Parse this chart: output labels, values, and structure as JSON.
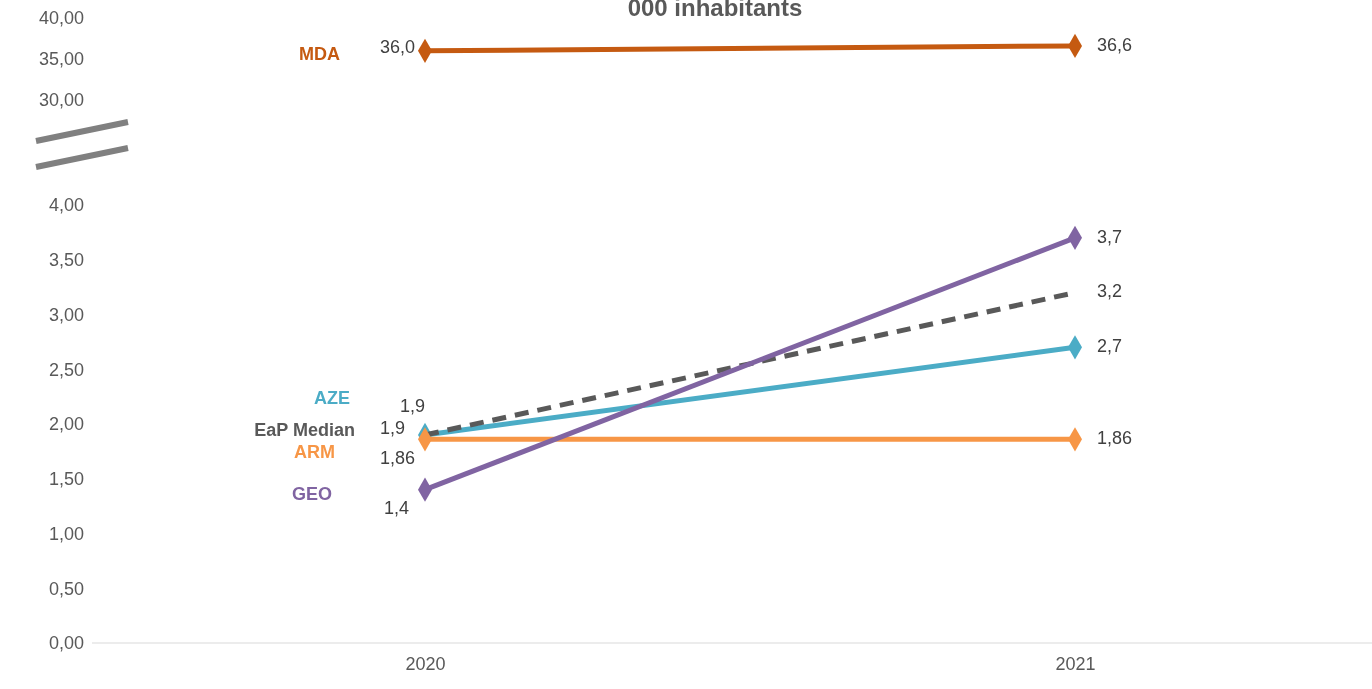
{
  "chart_data": [
    {
      "type": "line",
      "title": "000 inhabitants",
      "categories": [
        "2020",
        "2021"
      ],
      "ylim": [
        30,
        40
      ],
      "yticks": [
        {
          "value": 30,
          "label": "30,00"
        },
        {
          "value": 35,
          "label": "35,00"
        },
        {
          "value": 40,
          "label": "40,00"
        }
      ],
      "tick_labels": "y",
      "grid": false,
      "series": [
        {
          "name": "MDA",
          "color": "#c55a11",
          "values": [
            36.0,
            36.6
          ],
          "value_labels": [
            "36,0",
            "36,6"
          ],
          "marker": "diamond",
          "line_style": "solid"
        }
      ]
    },
    {
      "type": "line",
      "categories": [
        "2020",
        "2021"
      ],
      "ylim": [
        0,
        4
      ],
      "yticks": [
        {
          "value": 0,
          "label": "0,00"
        },
        {
          "value": 0.5,
          "label": "0,50"
        },
        {
          "value": 1,
          "label": "1,00"
        },
        {
          "value": 1.5,
          "label": "1,50"
        },
        {
          "value": 2,
          "label": "2,00"
        },
        {
          "value": 2.5,
          "label": "2,50"
        },
        {
          "value": 3,
          "label": "3,00"
        },
        {
          "value": 3.5,
          "label": "3,50"
        },
        {
          "value": 4,
          "label": "4,00"
        }
      ],
      "grid": false,
      "series": [
        {
          "name": "AZE",
          "color": "#4bacc6",
          "values": [
            1.9,
            2.7
          ],
          "value_labels": [
            "1,9",
            "2,7"
          ],
          "marker": "diamond",
          "line_style": "solid"
        },
        {
          "name": "EaP Median",
          "color": "#595959",
          "values": [
            1.9,
            3.2
          ],
          "value_labels": [
            "1,9",
            "3,2"
          ],
          "marker": "none",
          "line_style": "dashed"
        },
        {
          "name": "ARM",
          "color": "#f79646",
          "values": [
            1.86,
            1.86
          ],
          "value_labels": [
            "1,86",
            "1,86"
          ],
          "marker": "diamond",
          "line_style": "solid"
        },
        {
          "name": "GEO",
          "color": "#8064a2",
          "values": [
            1.4,
            3.7
          ],
          "value_labels": [
            "1,4",
            "3,7"
          ],
          "marker": "diamond",
          "line_style": "solid"
        }
      ]
    }
  ]
}
